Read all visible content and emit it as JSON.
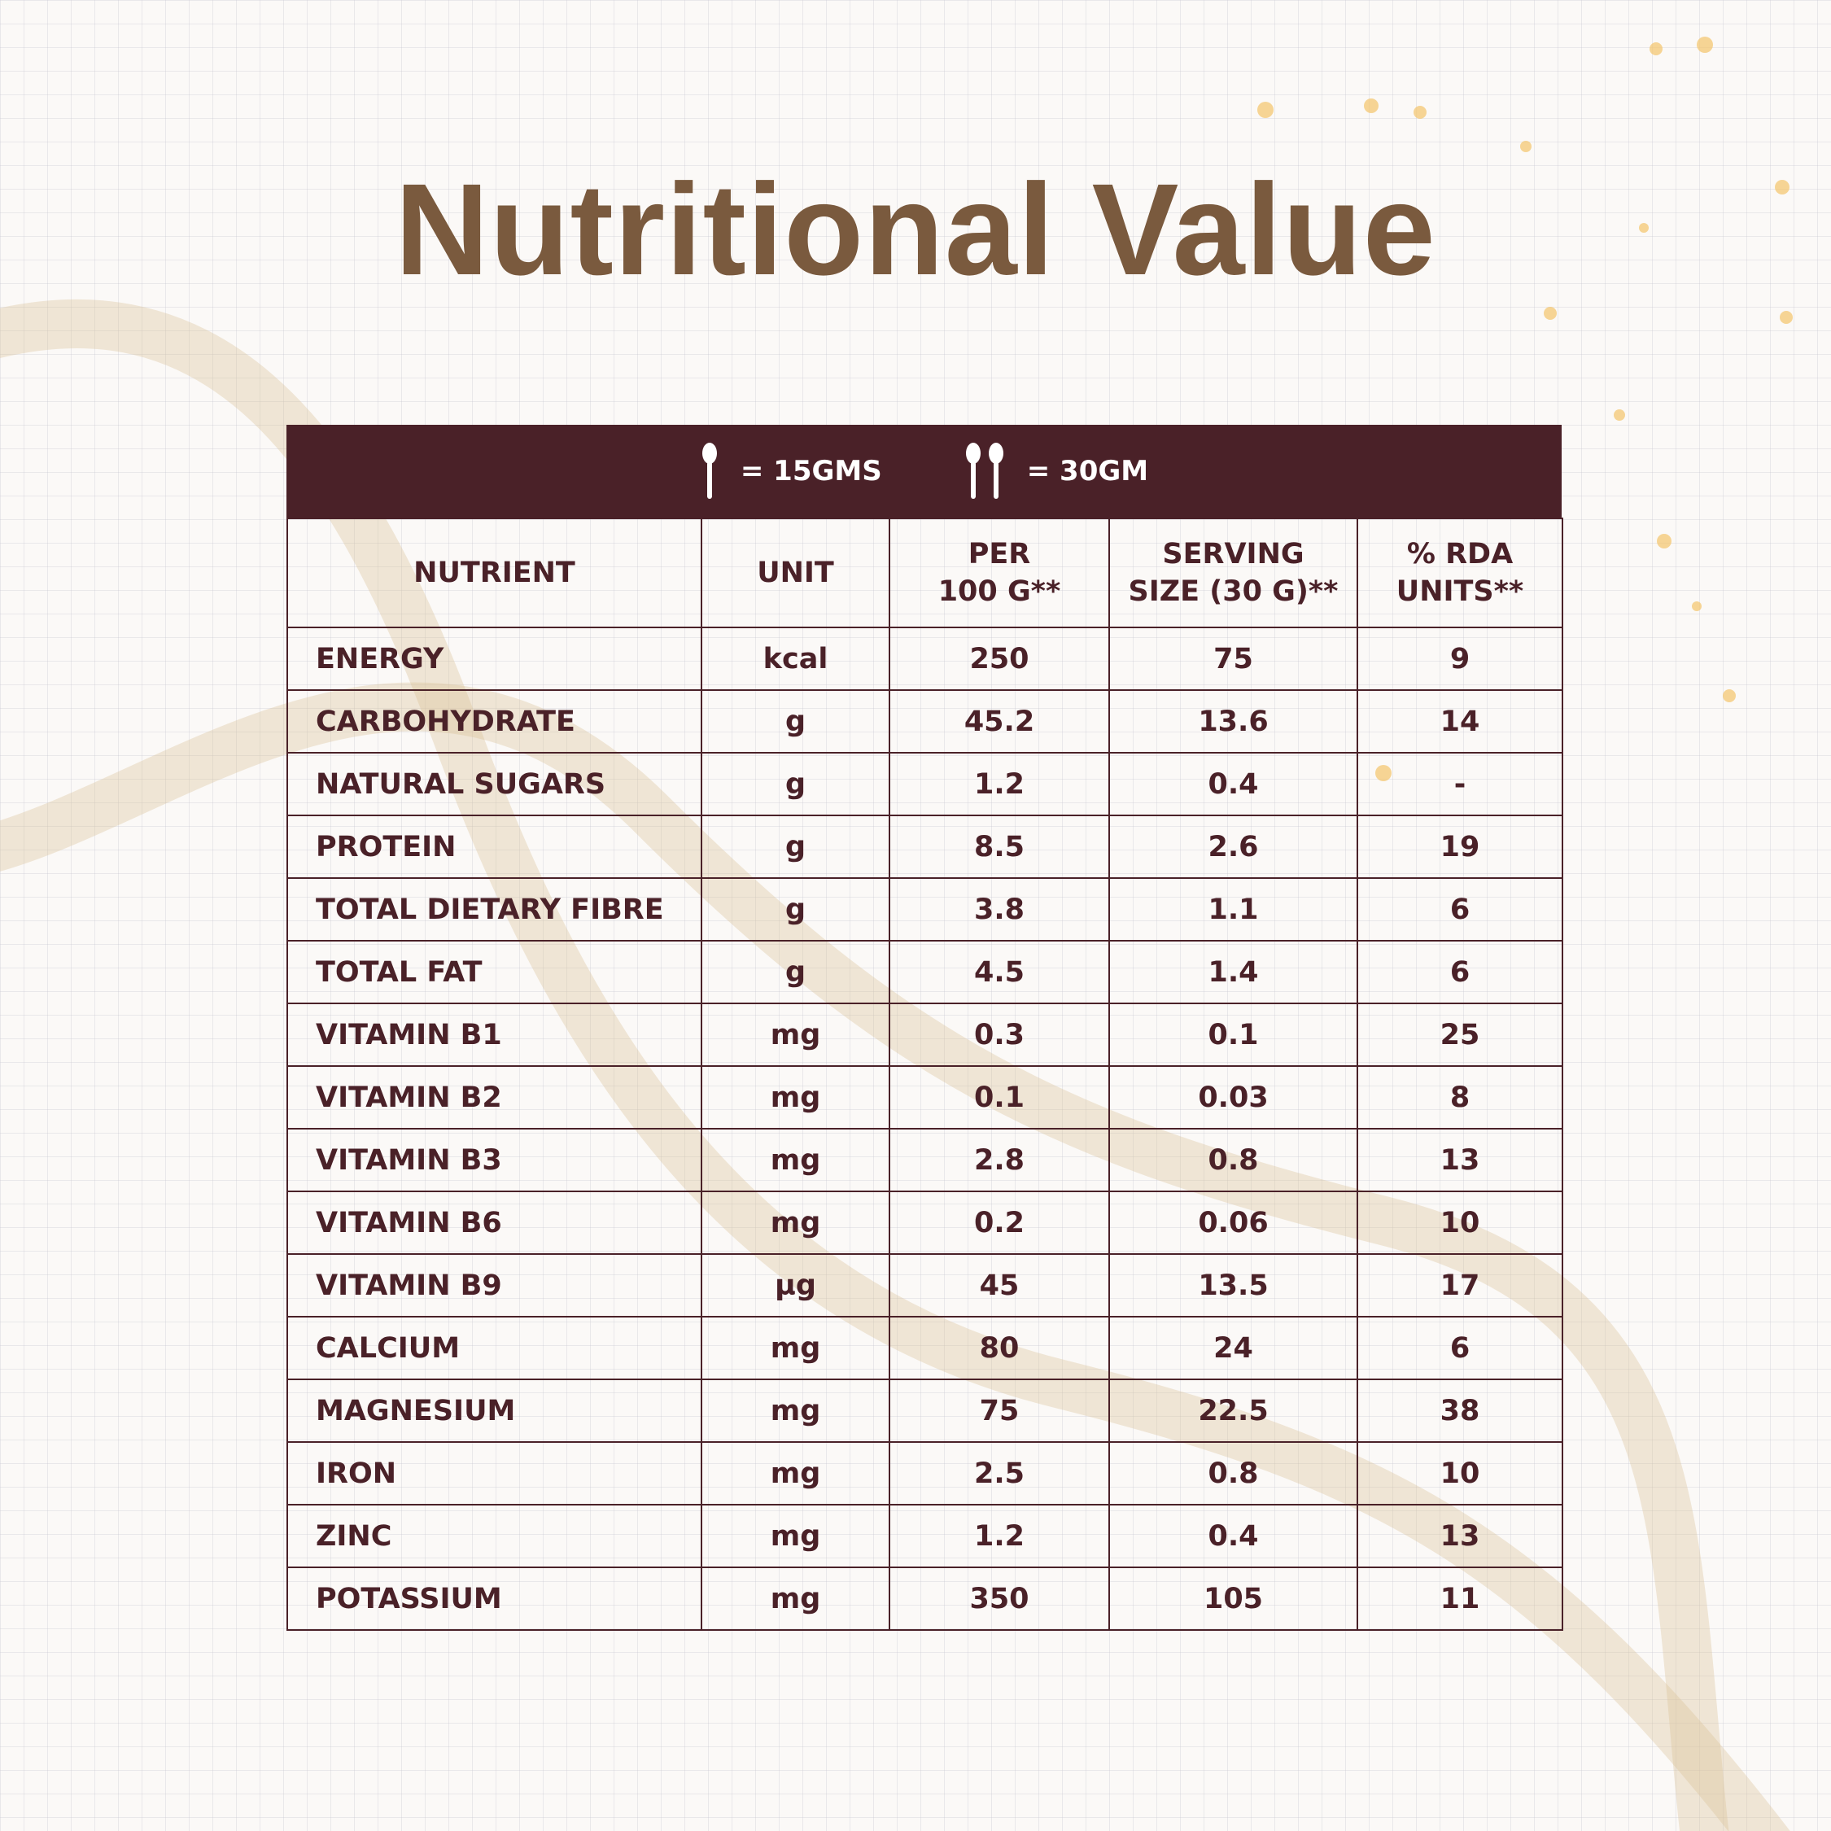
{
  "header": {
    "title": "Nutritional Value"
  },
  "serving_bar": {
    "one_scoop": "= 15GMS",
    "two_scoops": "= 30GM"
  },
  "table": {
    "columns": [
      [
        "NUTRIENT"
      ],
      [
        "UNIT"
      ],
      [
        "PER",
        "100 G**"
      ],
      [
        "SERVING",
        "SIZE (30 G)**"
      ],
      [
        "% RDA",
        "UNITS**"
      ]
    ],
    "rows": [
      [
        "ENERGY",
        "kcal",
        250,
        75,
        9
      ],
      [
        "CARBOHYDRATE",
        "g",
        45.2,
        13.6,
        14
      ],
      [
        "NATURAL SUGARS",
        "g",
        1.2,
        0.4,
        "-"
      ],
      [
        "PROTEIN",
        "g",
        8.5,
        2.6,
        19
      ],
      [
        "TOTAL DIETARY FIBRE",
        "g",
        3.8,
        1.1,
        6
      ],
      [
        "TOTAL FAT",
        "g",
        4.5,
        1.4,
        6
      ],
      [
        "VITAMIN B1",
        "mg",
        0.3,
        0.1,
        25
      ],
      [
        "VITAMIN B2",
        "mg",
        0.1,
        0.03,
        8
      ],
      [
        "VITAMIN B3",
        "mg",
        2.8,
        0.8,
        13
      ],
      [
        "VITAMIN B6",
        "mg",
        0.2,
        0.06,
        10
      ],
      [
        "VITAMIN B9",
        "µg",
        45,
        13.5,
        17
      ],
      [
        "CALCIUM",
        "mg",
        80,
        24,
        6
      ],
      [
        "MAGNESIUM",
        "mg",
        75,
        22.5,
        38
      ],
      [
        "IRON",
        "mg",
        2.5,
        0.8,
        10
      ],
      [
        "ZINC",
        "mg",
        1.2,
        0.4,
        13
      ],
      [
        "POTASSIUM",
        "mg",
        350,
        105,
        11
      ]
    ]
  }
}
